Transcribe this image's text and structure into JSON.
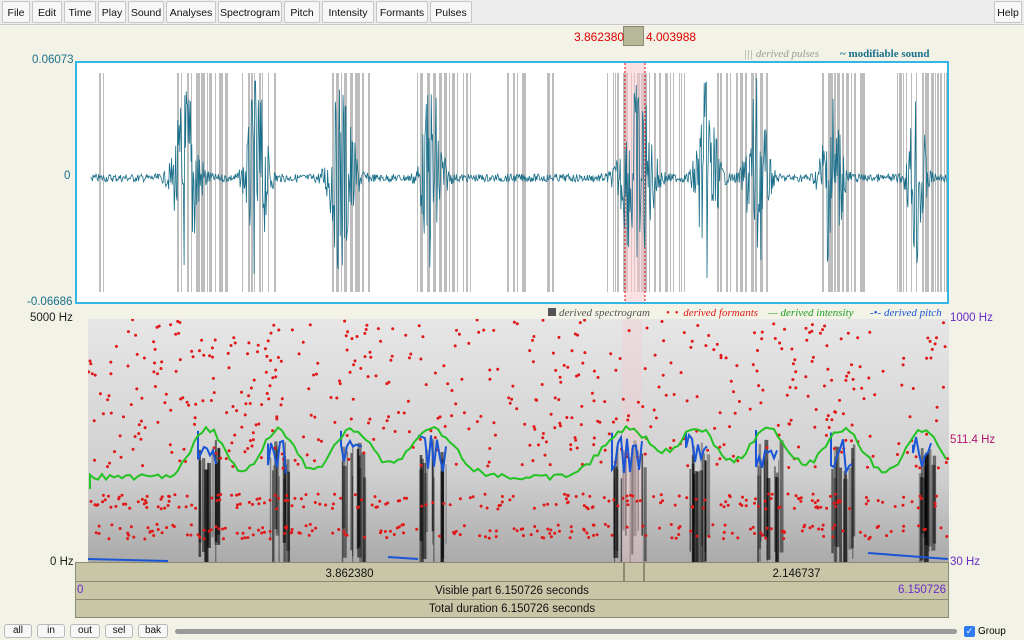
{
  "menu": {
    "items": [
      {
        "label": "File"
      },
      {
        "label": "Edit"
      },
      {
        "label": "Time"
      },
      {
        "label": "Play"
      },
      {
        "label": "Sound"
      },
      {
        "label": "Analyses"
      },
      {
        "label": "Spectrogram"
      },
      {
        "label": "Pitch"
      },
      {
        "label": "Intensity"
      },
      {
        "label": "Formants"
      },
      {
        "label": "Pulses"
      }
    ],
    "help": "Help"
  },
  "selection": {
    "start": "3.862380",
    "end": "4.003988"
  },
  "waveform": {
    "legend_pulses": "||| derived pulses",
    "legend_sound": "~ modifiable sound",
    "y_max": "0.06073",
    "y_zero": "0",
    "y_min": "-0.06686"
  },
  "spectrogram": {
    "legend_spectrogram": "derived spectrogram",
    "legend_formants": "derived formants",
    "legend_intensity": "derived intensity",
    "legend_pitch": "derived pitch",
    "left_top": "5000 Hz",
    "left_bottom": "0 Hz",
    "right_top": "1000 Hz",
    "right_mid": "511.4 Hz",
    "right_bottom": "30 Hz"
  },
  "time_bars": {
    "left_duration": "3.862380",
    "right_duration": "2.146737",
    "visible_label": "Visible part 6.150726 seconds",
    "visible_start": "0",
    "visible_end": "6.150726",
    "total_label": "Total duration 6.150726 seconds"
  },
  "bottom": {
    "buttons": [
      {
        "label": "all"
      },
      {
        "label": "in"
      },
      {
        "label": "out"
      },
      {
        "label": "sel"
      },
      {
        "label": "bak"
      }
    ],
    "group_label": "Group",
    "group_checked": true
  },
  "colors": {
    "wave": "#1a6f8a",
    "pulses": "#b8b8b8",
    "formants": "#e01818",
    "intensity": "#22c322",
    "pitch": "#1a55d6",
    "selection": "#e00000"
  }
}
